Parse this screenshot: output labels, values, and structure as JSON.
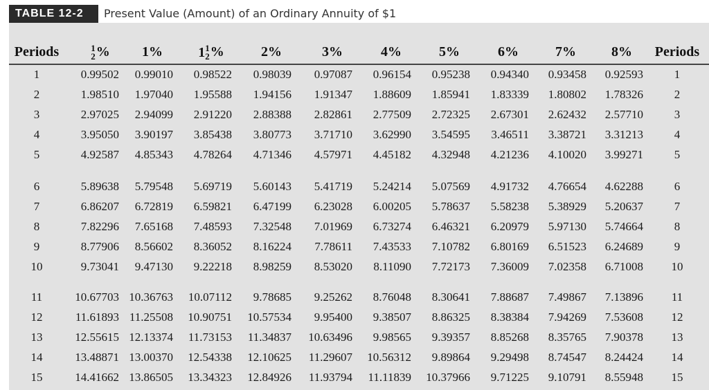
{
  "table": {
    "label": "TABLE 12-2",
    "title": "Present Value (Amount) of an Ordinary Annuity of $1",
    "columns": [
      {
        "key": "periods",
        "label": "Periods"
      },
      {
        "key": "r0_5",
        "frac_num": "1",
        "frac_den": "2",
        "suffix": "%"
      },
      {
        "key": "r1",
        "label": "1%"
      },
      {
        "key": "r1_5",
        "whole": "1",
        "frac_num": "1",
        "frac_den": "2",
        "suffix": "%"
      },
      {
        "key": "r2",
        "label": "2%"
      },
      {
        "key": "r3",
        "label": "3%"
      },
      {
        "key": "r4",
        "label": "4%"
      },
      {
        "key": "r5",
        "label": "5%"
      },
      {
        "key": "r6",
        "label": "6%"
      },
      {
        "key": "r7",
        "label": "7%"
      },
      {
        "key": "r8",
        "label": "8%"
      },
      {
        "key": "periods_right",
        "label": "Periods"
      }
    ],
    "rows": [
      [
        "1",
        "0.99502",
        "0.99010",
        "0.98522",
        "0.98039",
        "0.97087",
        "0.96154",
        "0.95238",
        "0.94340",
        "0.93458",
        "0.92593",
        "1"
      ],
      [
        "2",
        "1.98510",
        "1.97040",
        "1.95588",
        "1.94156",
        "1.91347",
        "1.88609",
        "1.85941",
        "1.83339",
        "1.80802",
        "1.78326",
        "2"
      ],
      [
        "3",
        "2.97025",
        "2.94099",
        "2.91220",
        "2.88388",
        "2.82861",
        "2.77509",
        "2.72325",
        "2.67301",
        "2.62432",
        "2.57710",
        "3"
      ],
      [
        "4",
        "3.95050",
        "3.90197",
        "3.85438",
        "3.80773",
        "3.71710",
        "3.62990",
        "3.54595",
        "3.46511",
        "3.38721",
        "3.31213",
        "4"
      ],
      [
        "5",
        "4.92587",
        "4.85343",
        "4.78264",
        "4.71346",
        "4.57971",
        "4.45182",
        "4.32948",
        "4.21236",
        "4.10020",
        "3.99271",
        "5"
      ],
      [
        "6",
        "5.89638",
        "5.79548",
        "5.69719",
        "5.60143",
        "5.41719",
        "5.24214",
        "5.07569",
        "4.91732",
        "4.76654",
        "4.62288",
        "6"
      ],
      [
        "7",
        "6.86207",
        "6.72819",
        "6.59821",
        "6.47199",
        "6.23028",
        "6.00205",
        "5.78637",
        "5.58238",
        "5.38929",
        "5.20637",
        "7"
      ],
      [
        "8",
        "7.82296",
        "7.65168",
        "7.48593",
        "7.32548",
        "7.01969",
        "6.73274",
        "6.46321",
        "6.20979",
        "5.97130",
        "5.74664",
        "8"
      ],
      [
        "9",
        "8.77906",
        "8.56602",
        "8.36052",
        "8.16224",
        "7.78611",
        "7.43533",
        "7.10782",
        "6.80169",
        "6.51523",
        "6.24689",
        "9"
      ],
      [
        "10",
        "9.73041",
        "9.47130",
        "9.22218",
        "8.98259",
        "8.53020",
        "8.11090",
        "7.72173",
        "7.36009",
        "7.02358",
        "6.71008",
        "10"
      ],
      [
        "11",
        "10.67703",
        "10.36763",
        "10.07112",
        "9.78685",
        "9.25262",
        "8.76048",
        "8.30641",
        "7.88687",
        "7.49867",
        "7.13896",
        "11"
      ],
      [
        "12",
        "11.61893",
        "11.25508",
        "10.90751",
        "10.57534",
        "9.95400",
        "9.38507",
        "8.86325",
        "8.38384",
        "7.94269",
        "7.53608",
        "12"
      ],
      [
        "13",
        "12.55615",
        "12.13374",
        "11.73153",
        "11.34837",
        "10.63496",
        "9.98565",
        "9.39357",
        "8.85268",
        "8.35765",
        "7.90378",
        "13"
      ],
      [
        "14",
        "13.48871",
        "13.00370",
        "12.54338",
        "12.10625",
        "11.29607",
        "10.56312",
        "9.89864",
        "9.29498",
        "8.74547",
        "8.24424",
        "14"
      ],
      [
        "15",
        "14.41662",
        "13.86505",
        "13.34323",
        "12.84926",
        "11.93794",
        "11.11839",
        "10.37966",
        "9.71225",
        "9.10791",
        "8.55948",
        "15"
      ]
    ]
  }
}
